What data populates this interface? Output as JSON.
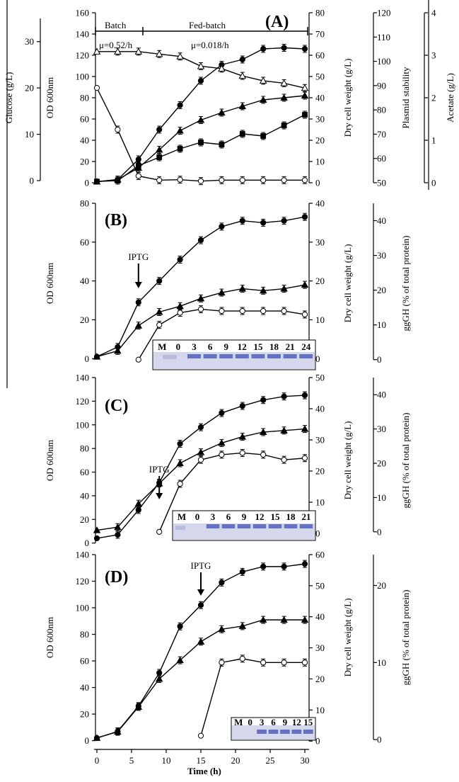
{
  "figure": {
    "x_axis_label": "Time (h)",
    "x_ticks": [
      0,
      5,
      10,
      15,
      20,
      25,
      30
    ]
  },
  "chart_data": [
    {
      "type": "line",
      "panel": "(A)",
      "x": [
        0,
        3,
        6,
        9,
        12,
        15,
        18,
        21,
        24,
        27,
        30
      ],
      "annotations": {
        "batch": "Batch",
        "fed_batch": "Fed-batch",
        "mu_batch": "μ=0.52/h",
        "mu_fed": "μ=0.018/h"
      },
      "axes": [
        {
          "label": "OD 600nm",
          "range": [
            0,
            160
          ],
          "ticks": [
            0,
            20,
            40,
            60,
            80,
            100,
            120,
            140,
            160
          ]
        },
        {
          "label": "Glucose (g/L)",
          "range": [
            0,
            35
          ],
          "ticks": [
            0,
            10,
            20,
            30
          ]
        },
        {
          "label": "Dry cell weight (g/L)",
          "range": [
            0,
            80
          ],
          "ticks": [
            0,
            10,
            20,
            30,
            40,
            50,
            60,
            70,
            80
          ]
        },
        {
          "label": "Plasmid stability",
          "range": [
            50,
            120
          ],
          "ticks": [
            50,
            60,
            70,
            80,
            90,
            100,
            110,
            120
          ]
        },
        {
          "label": "Acetate (g/L)",
          "range": [
            0,
            4
          ],
          "ticks": [
            0,
            1,
            2,
            3,
            4
          ]
        }
      ],
      "series": [
        {
          "marker": "filled-circle",
          "axis": 0,
          "values": [
            1,
            3,
            22,
            50,
            73,
            96,
            111,
            116,
            126,
            127,
            126
          ]
        },
        {
          "marker": "filled-triangle",
          "axis": 2,
          "values": [
            0.5,
            1.5,
            7,
            15.5,
            24.5,
            29.5,
            33,
            36,
            39,
            40,
            41
          ]
        },
        {
          "marker": "filled-square",
          "axis": 4,
          "values": [
            0.03,
            0.05,
            0.4,
            0.6,
            0.8,
            0.95,
            0.9,
            1.15,
            1.1,
            1.35,
            1.6
          ]
        },
        {
          "marker": "open-circle",
          "axis": 1,
          "values": [
            20,
            11,
            1,
            0.1,
            0.2,
            -0.1,
            0.1,
            0.1,
            0.1,
            0.1,
            0.1
          ]
        },
        {
          "marker": "open-triangle",
          "axis": 3,
          "values": [
            104,
            104,
            104,
            103,
            102,
            98,
            97,
            94,
            92,
            91,
            89
          ]
        }
      ]
    },
    {
      "type": "line",
      "panel": "(B)",
      "x": [
        0,
        3,
        6,
        9,
        12,
        15,
        18,
        21,
        24,
        27,
        30
      ],
      "induction": {
        "label": "IPTG",
        "time": 6
      },
      "gel_lanes": [
        "M",
        "0",
        "3",
        "6",
        "9",
        "12",
        "15",
        "18",
        "21",
        "24"
      ],
      "axes": [
        {
          "label": "OD 600nm",
          "range": [
            -5,
            80
          ],
          "ticks": [
            0,
            20,
            40,
            60,
            80
          ]
        },
        {
          "label": "Dry cell weight (g/L)",
          "range": [
            -2.5,
            40
          ],
          "ticks": [
            0,
            10,
            20,
            30,
            40
          ]
        },
        {
          "label": "ggGH (% of total protein)",
          "range": [
            -2.5,
            45
          ],
          "ticks": [
            0,
            10,
            20,
            30,
            40
          ]
        }
      ],
      "series": [
        {
          "marker": "filled-circle",
          "axis": 0,
          "values": [
            1,
            6,
            29,
            40,
            51,
            61,
            68,
            71,
            70,
            71,
            73
          ]
        },
        {
          "marker": "filled-triangle",
          "axis": 1,
          "values": [
            0.5,
            2,
            8.5,
            12,
            13.5,
            15.5,
            17,
            18,
            17.5,
            18,
            19
          ]
        },
        {
          "marker": "open-circle",
          "x": [
            6,
            9,
            12,
            15,
            18,
            21,
            24,
            27,
            30
          ],
          "axis": 2,
          "values": [
            0,
            10,
            13.5,
            14.5,
            14,
            14,
            14,
            14,
            13
          ]
        }
      ]
    },
    {
      "type": "line",
      "panel": "(C)",
      "x": [
        0,
        3,
        6,
        9,
        12,
        15,
        18,
        21,
        24,
        27,
        30
      ],
      "induction": {
        "label": "IPTG",
        "time": 9
      },
      "gel_lanes": [
        "M",
        "0",
        "3",
        "6",
        "9",
        "12",
        "15",
        "18",
        "21"
      ],
      "axes": [
        {
          "label": "OD 600nm",
          "range": [
            -5,
            140
          ],
          "ticks": [
            0,
            20,
            40,
            60,
            80,
            100,
            120,
            140
          ]
        },
        {
          "label": "Dry cell weight (g/L)",
          "range": [
            -5,
            50
          ],
          "ticks": [
            0,
            10,
            20,
            30,
            40,
            50
          ]
        },
        {
          "label": "ggGH (% of total protein)",
          "range": [
            -5,
            45
          ],
          "ticks": [
            0,
            10,
            20,
            30,
            40
          ]
        }
      ],
      "series": [
        {
          "marker": "filled-circle",
          "axis": 0,
          "values": [
            4,
            7,
            28,
            51,
            84,
            98,
            110,
            116,
            121,
            124,
            125
          ]
        },
        {
          "marker": "filled-triangle",
          "axis": 1,
          "values": [
            1,
            2,
            9.5,
            16,
            22.5,
            26,
            29,
            31,
            32.5,
            33,
            33.5
          ]
        },
        {
          "marker": "open-circle",
          "x": [
            9,
            12,
            15,
            18,
            21,
            24,
            27,
            30
          ],
          "axis": 2,
          "values": [
            0,
            14,
            21,
            22.5,
            23,
            22.5,
            21,
            21.5
          ]
        }
      ]
    },
    {
      "type": "line",
      "panel": "(D)",
      "x": [
        0,
        3,
        6,
        9,
        12,
        15,
        18,
        21,
        24,
        27,
        30
      ],
      "induction": {
        "label": "IPTG",
        "time": 15
      },
      "gel_lanes": [
        "M",
        "0",
        "3",
        "6",
        "9",
        "12",
        "15"
      ],
      "axes": [
        {
          "label": "OD 600nm",
          "range": [
            -5,
            140
          ],
          "ticks": [
            0,
            20,
            40,
            60,
            80,
            100,
            120,
            140
          ]
        },
        {
          "label": "Dry cell weight (g/L)",
          "range": [
            -2,
            60
          ],
          "ticks": [
            0,
            10,
            20,
            30,
            40,
            50,
            60
          ]
        },
        {
          "label": "ggGH (% of total protein)",
          "range": [
            -1,
            24
          ],
          "ticks": [
            0,
            10,
            20
          ]
        }
      ],
      "series": [
        {
          "marker": "filled-circle",
          "axis": 0,
          "values": [
            2,
            7,
            26,
            51,
            86,
            102,
            119,
            127,
            131,
            131,
            133
          ]
        },
        {
          "marker": "filled-triangle",
          "axis": 1,
          "values": [
            1,
            3,
            11,
            20,
            26,
            32,
            36,
            37,
            39,
            39,
            39
          ]
        },
        {
          "marker": "open-circle",
          "x": [
            15,
            18,
            21,
            24,
            27,
            30
          ],
          "axis": 2,
          "values": [
            0.5,
            10,
            10.5,
            10,
            10,
            10
          ]
        }
      ]
    }
  ]
}
